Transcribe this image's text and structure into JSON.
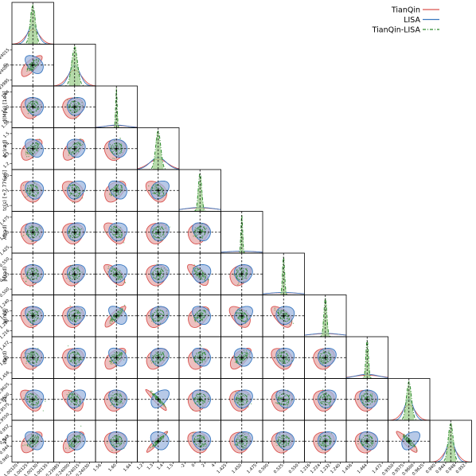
{
  "chart_data": {
    "type": "corner",
    "title": "",
    "legend": {
      "placement": "top-right",
      "entries": [
        {
          "label": "TianQin",
          "color": "#d9534f",
          "style": "solid"
        },
        {
          "label": "LISA",
          "color": "#3a78c0",
          "style": "solid"
        },
        {
          "label": "TianQin-LISA",
          "color": "#2e8b2e",
          "style": "dashdot"
        }
      ]
    },
    "truth_line": {
      "color": "#000000",
      "style": "dashed"
    },
    "colors": {
      "TianQin": "#d9534f",
      "TianQin_fill": "#e7a9a9",
      "LISA": "#3a78c0",
      "LISA_fill": "#9fb7df",
      "TianQin-LISA": "#2e8b2e",
      "TianQin-LISA_fill": "#9fcf8f"
    },
    "parameters": [
      {
        "label": "λ(M⊙) [1e6]",
        "xticks": [
          "1.00120",
          "1.00125",
          "1.00130",
          "1.00135"
        ],
        "yticks": []
      },
      {
        "label": "η",
        "xticks": [
          "0.23985",
          "0.24000",
          "0.24015",
          "0.24030"
        ],
        "yticks": [
          "0.24015",
          "0.24000",
          "0.23985"
        ]
      },
      {
        "label": "d(Mpc) [1e4]",
        "xticks": [
          "1.56",
          "1.60",
          "1.64"
        ],
        "yticks": [
          "1.64",
          "1.60",
          "1.56"
        ]
      },
      {
        "label": "ϕc(rad)",
        "xticks": [
          "1.2",
          "1.3",
          "1.4",
          "1.5"
        ],
        "yticks": [
          "1.5",
          "1.4",
          "1.3",
          "1.2"
        ]
      },
      {
        "label": "tc(s) [+7.776e6]",
        "xticks": [
          "-2",
          "0",
          "2",
          "4"
        ],
        "yticks": [
          "10",
          "-1",
          "-2"
        ]
      },
      {
        "label": "λ(rad)",
        "xticks": [
          "1.425",
          "1.450",
          "1.475"
        ],
        "yticks": [
          "1.475",
          "1.450",
          "1.425"
        ]
      },
      {
        "label": "β(rad)",
        "xticks": [
          "0.500",
          "0.525",
          "0.550"
        ],
        "yticks": [
          "0.550",
          "0.525",
          "0.500"
        ]
      },
      {
        "label": "ψ(rad)",
        "xticks": [
          "1.216",
          "1.224",
          "1.232",
          "1.240"
        ],
        "yticks": [
          "1.240",
          "1.232",
          "1.224",
          "1.216"
        ]
      },
      {
        "label": "ι(ard)",
        "xticks": [
          "1.456",
          "1.464",
          "1.472"
        ],
        "yticks": [
          "1.472",
          "1.464",
          "1.456"
        ]
      },
      {
        "label": "a1",
        "xticks": [
          "0.9550",
          "0.9575",
          "0.9600",
          "0.9625"
        ],
        "yticks": [
          "0.9625",
          "0.9600",
          "0.9575",
          "0.9550"
        ]
      },
      {
        "label": "a2",
        "xticks": [
          "0.940",
          "0.944",
          "0.948",
          "0.952"
        ],
        "yticks": [
          "0.952",
          "0.948",
          "0.944",
          "0.940"
        ]
      }
    ],
    "series_order": [
      "TianQin",
      "LISA",
      "TianQin-LISA"
    ],
    "marginal_widths": {
      "TianQin": [
        0.32,
        0.34,
        0.6,
        0.45,
        0.9,
        0.9,
        0.9,
        0.9,
        0.7,
        0.3,
        0.3
      ],
      "LISA": [
        0.24,
        0.26,
        0.5,
        0.38,
        0.8,
        0.8,
        0.8,
        0.8,
        0.55,
        0.22,
        0.22
      ],
      "TianQin-LISA": [
        0.12,
        0.14,
        0.035,
        0.12,
        0.08,
        0.04,
        0.05,
        0.07,
        0.06,
        0.12,
        0.12
      ]
    },
    "pair_correlation": [
      [
        null
      ],
      [
        0.75,
        null
      ],
      [
        0.1,
        0.05,
        null
      ],
      [
        0.55,
        0.6,
        0.1,
        null
      ],
      [
        -0.2,
        -0.3,
        0.45,
        -0.4,
        null
      ],
      [
        0.05,
        0.0,
        -0.5,
        0.1,
        0.2,
        null
      ],
      [
        0.1,
        0.15,
        -0.65,
        0.05,
        -0.7,
        0.3,
        null
      ],
      [
        0.0,
        0.05,
        0.85,
        0.3,
        0.4,
        -0.5,
        -0.6,
        null
      ],
      [
        0.05,
        0.0,
        0.6,
        0.4,
        0.3,
        0.65,
        -0.3,
        0.1,
        null
      ],
      [
        -0.45,
        -0.5,
        0.1,
        -0.95,
        0.2,
        0.0,
        0.05,
        0.0,
        -0.05,
        null
      ],
      [
        0.55,
        0.6,
        0.05,
        0.95,
        -0.2,
        0.05,
        0.05,
        0.05,
        0.05,
        -0.9,
        null
      ]
    ]
  }
}
